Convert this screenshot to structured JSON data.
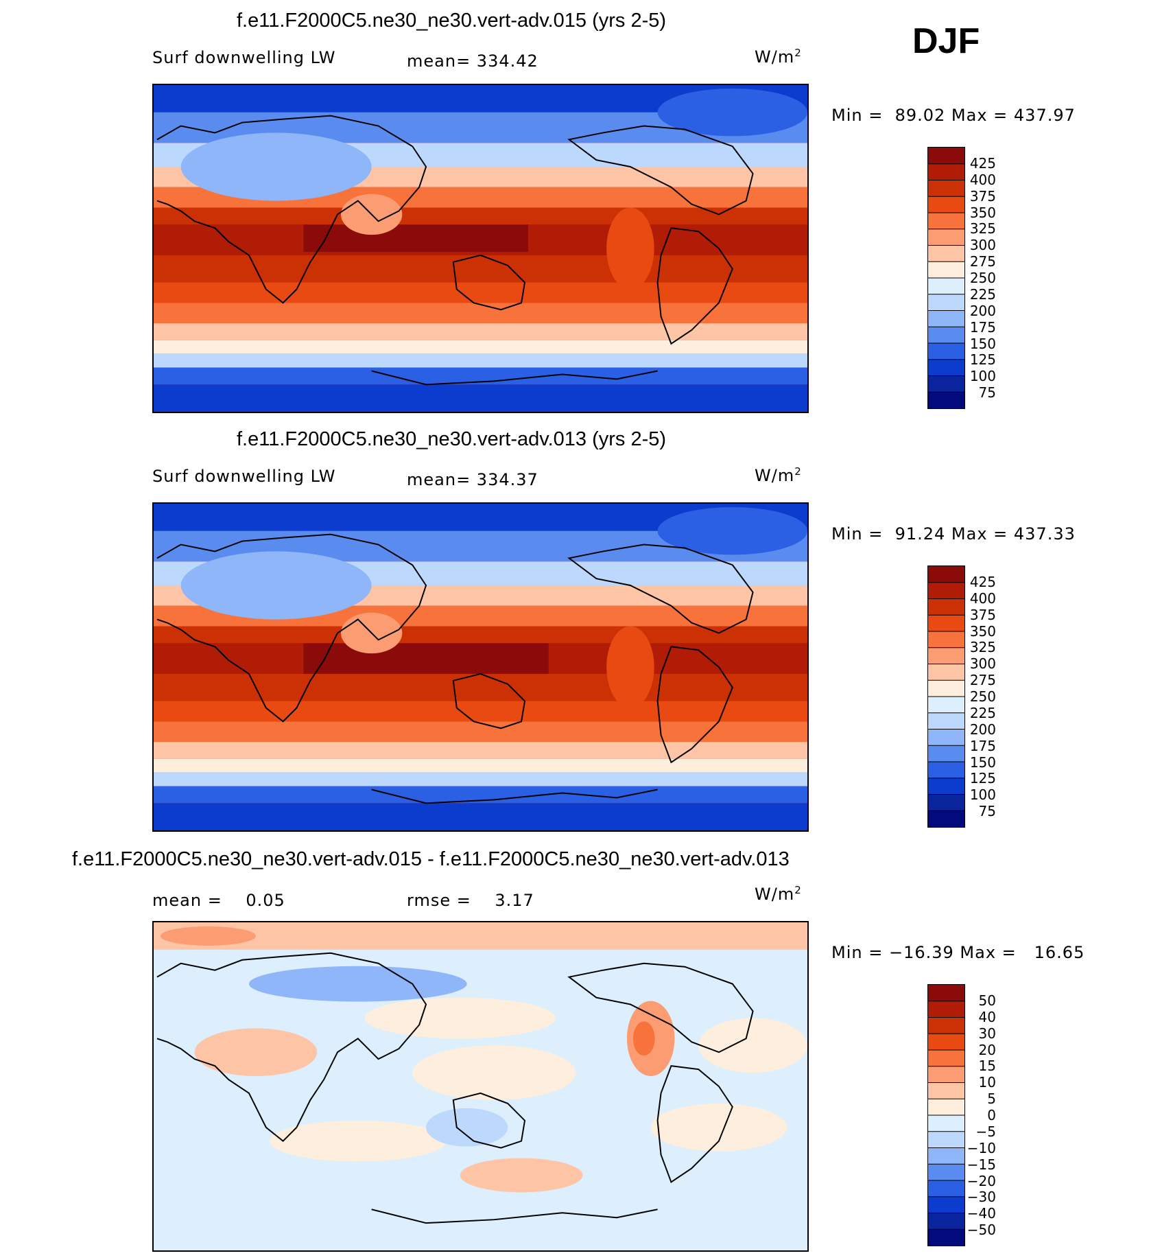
{
  "season": "DJF",
  "panels": [
    {
      "title": "f.e11.F2000C5.ne30_ne30.vert-adv.015 (yrs 2-5)",
      "left_label": "Surf downwelling LW",
      "mid_label": "mean= 334.42",
      "unit": "W/m",
      "unit_sup": "2",
      "minmax": "Min =  89.02 Max = 437.97",
      "levels": [
        "425",
        "400",
        "375",
        "350",
        "325",
        "300",
        "275",
        "250",
        "225",
        "200",
        "175",
        "150",
        "125",
        "100",
        "75"
      ],
      "colors": [
        "#8b0a0a",
        "#b01c06",
        "#cc3106",
        "#e84a12",
        "#f8733c",
        "#fc9c72",
        "#fdc4a6",
        "#feeede",
        "#ddeefc",
        "#bcd8fc",
        "#8fb6f8",
        "#5a8cf0",
        "#2b60e4",
        "#0c3cce",
        "#0a249e",
        "#020a7c"
      ]
    },
    {
      "title": "f.e11.F2000C5.ne30_ne30.vert-adv.013 (yrs 2-5)",
      "left_label": "Surf downwelling LW",
      "mid_label": "mean= 334.37",
      "unit": "W/m",
      "unit_sup": "2",
      "minmax": "Min =  91.24 Max = 437.33",
      "levels": [
        "425",
        "400",
        "375",
        "350",
        "325",
        "300",
        "275",
        "250",
        "225",
        "200",
        "175",
        "150",
        "125",
        "100",
        "75"
      ],
      "colors": [
        "#8b0a0a",
        "#b01c06",
        "#cc3106",
        "#e84a12",
        "#f8733c",
        "#fc9c72",
        "#fdc4a6",
        "#feeede",
        "#ddeefc",
        "#bcd8fc",
        "#8fb6f8",
        "#5a8cf0",
        "#2b60e4",
        "#0c3cce",
        "#0a249e",
        "#020a7c"
      ]
    },
    {
      "title": "f.e11.F2000C5.ne30_ne30.vert-adv.015 - f.e11.F2000C5.ne30_ne30.vert-adv.013",
      "left_label": "mean =    0.05",
      "mid_label": "rmse =    3.17",
      "unit": "W/m",
      "unit_sup": "2",
      "minmax": "Min = −16.39 Max =   16.65",
      "levels": [
        "50",
        "40",
        "30",
        "20",
        "15",
        "10",
        "5",
        "0",
        "−5",
        "−10",
        "−15",
        "−20",
        "−30",
        "−40",
        "−50"
      ],
      "colors": [
        "#8b0a0a",
        "#b01c06",
        "#cc3106",
        "#e84a12",
        "#f8733c",
        "#fc9c72",
        "#fdc4a6",
        "#feeede",
        "#ddeefc",
        "#bcd8fc",
        "#8fb6f8",
        "#5a8cf0",
        "#2b60e4",
        "#0c3cce",
        "#0a249e",
        "#020a7c"
      ]
    }
  ],
  "chart_data": [
    {
      "type": "heatmap",
      "title": "f.e11.F2000C5.ne30_ne30.vert-adv.015 (yrs 2-5)",
      "variable": "Surf downwelling LW",
      "units": "W/m2",
      "mean": 334.42,
      "min": 89.02,
      "max": 437.97,
      "contour_levels": [
        75,
        100,
        125,
        150,
        175,
        200,
        225,
        250,
        275,
        300,
        325,
        350,
        375,
        400,
        425
      ]
    },
    {
      "type": "heatmap",
      "title": "f.e11.F2000C5.ne30_ne30.vert-adv.013 (yrs 2-5)",
      "variable": "Surf downwelling LW",
      "units": "W/m2",
      "mean": 334.37,
      "min": 91.24,
      "max": 437.33,
      "contour_levels": [
        75,
        100,
        125,
        150,
        175,
        200,
        225,
        250,
        275,
        300,
        325,
        350,
        375,
        400,
        425
      ]
    },
    {
      "type": "heatmap",
      "title": "f.e11.F2000C5.ne30_ne30.vert-adv.015 - f.e11.F2000C5.ne30_ne30.vert-adv.013",
      "units": "W/m2",
      "mean": 0.05,
      "rmse": 3.17,
      "min": -16.39,
      "max": 16.65,
      "contour_levels": [
        -50,
        -40,
        -30,
        -20,
        -15,
        -10,
        -5,
        0,
        5,
        10,
        15,
        20,
        30,
        40,
        50
      ]
    }
  ]
}
